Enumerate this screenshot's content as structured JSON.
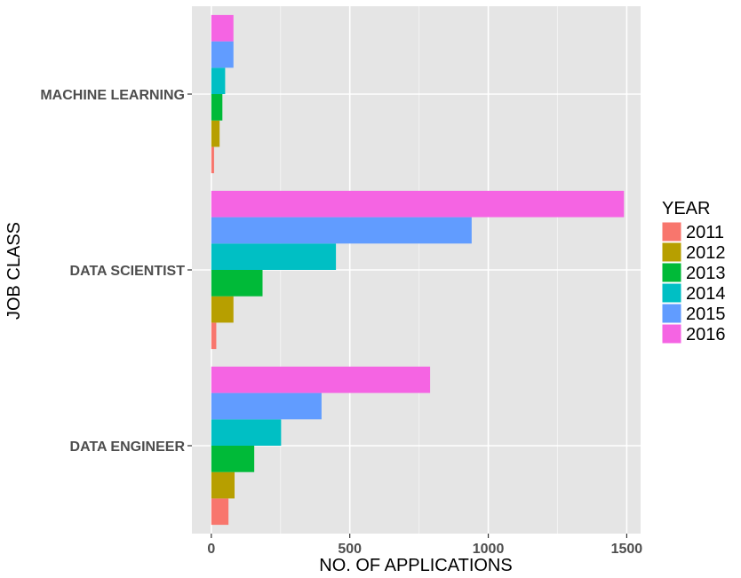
{
  "chart_data": {
    "type": "bar",
    "orientation": "horizontal",
    "xlabel": "NO. OF APPLICATIONS",
    "ylabel": "JOB CLASS",
    "xlim": [
      -70,
      1550
    ],
    "x_ticks": [
      0,
      500,
      1000,
      1500
    ],
    "x_tick_labels": [
      "0",
      "500",
      "1000",
      "1500"
    ],
    "categories": [
      "MACHINE LEARNING",
      "DATA SCIENTIST",
      "DATA ENGINEER"
    ],
    "legend": {
      "title": "YEAR",
      "position": "right"
    },
    "series": [
      {
        "name": "2011",
        "color": "#F8766D",
        "values": [
          10,
          18,
          62
        ]
      },
      {
        "name": "2012",
        "color": "#B79F00",
        "values": [
          30,
          80,
          84
        ]
      },
      {
        "name": "2013",
        "color": "#00BA38",
        "values": [
          40,
          185,
          155
        ]
      },
      {
        "name": "2014",
        "color": "#00BFC4",
        "values": [
          50,
          450,
          252
        ]
      },
      {
        "name": "2015",
        "color": "#619CFF",
        "values": [
          80,
          940,
          398
        ]
      },
      {
        "name": "2016",
        "color": "#F564E3",
        "values": [
          80,
          1490,
          790
        ]
      }
    ]
  }
}
